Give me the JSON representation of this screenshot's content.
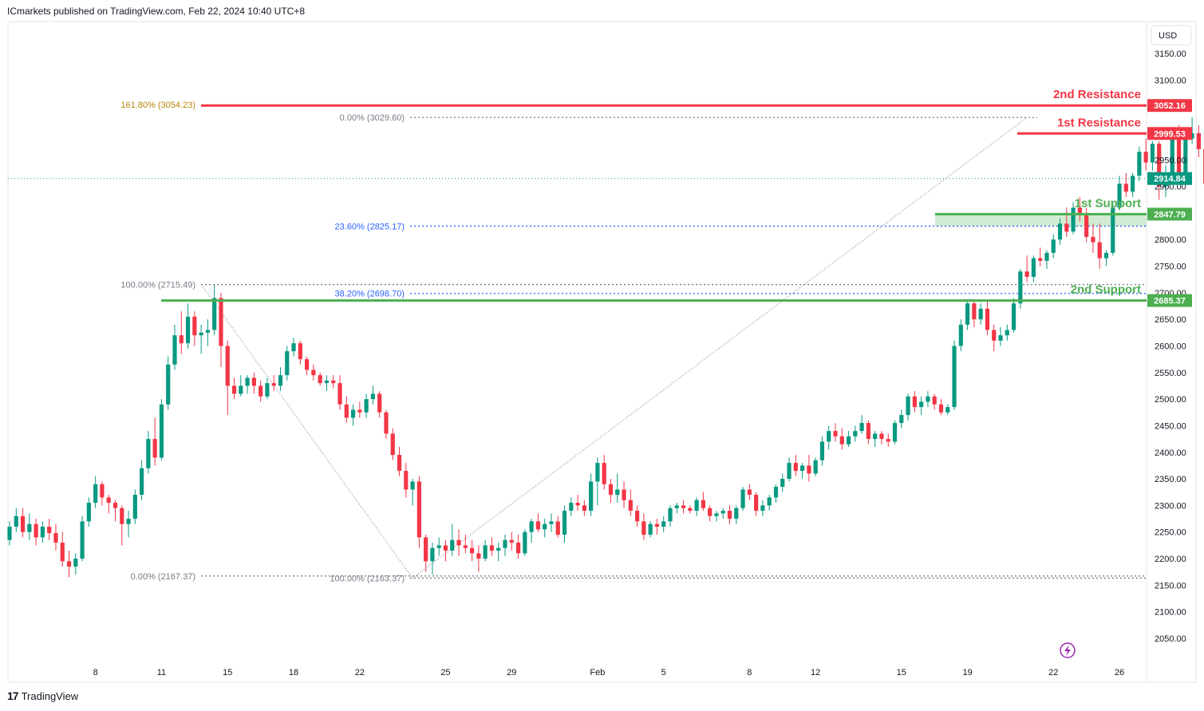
{
  "header": {
    "publisher": "ICmarkets published on TradingView.com, Feb 22, 2024 10:40 UTC+8"
  },
  "footer": {
    "brand": "TradingView",
    "brand_mark": "17"
  },
  "currency_label": "USD",
  "colors": {
    "up": "#089981",
    "down": "#f23645",
    "resistance": "#f23645",
    "support": "#4caf50",
    "fib_blue": "#2962ff",
    "fib_gray": "#787b86",
    "fib_gold": "#b8860b",
    "bg": "#ffffff"
  },
  "icons": {
    "alert": "lightning-icon"
  },
  "chart_data": {
    "type": "candlestick",
    "symbol_currency": "USD",
    "ylim": [
      2000,
      3180
    ],
    "y_ticks": [
      2050,
      2100,
      2150,
      2200,
      2250,
      2300,
      2350,
      2400,
      2450,
      2500,
      2550,
      2600,
      2650,
      2700,
      2750,
      2800,
      2850,
      2900,
      2950,
      3000,
      3050,
      3100,
      3150
    ],
    "y_tick_labels": [
      "2050.00",
      "2100.00",
      "2150.00",
      "2200.00",
      "2250.00",
      "2300.00",
      "2350.00",
      "2400.00",
      "2450.00",
      "2500.00",
      "2550.00",
      "2600.00",
      "2650.00",
      "2700.00",
      "2750.00",
      "2800.00",
      "2850.00",
      "2900.00",
      "2950.00",
      "3000.00",
      "3050.00",
      "3100.00",
      "3150.00"
    ],
    "x_labels": [
      "8",
      "11",
      "15",
      "18",
      "22",
      "25",
      "29",
      "Feb",
      "5",
      "8",
      "12",
      "15",
      "19",
      "22",
      "26"
    ],
    "x_label_candle_index": [
      13,
      23,
      33,
      43,
      53,
      66,
      76,
      89,
      99,
      112,
      122,
      135,
      145,
      158,
      168
    ],
    "current_price": {
      "value": 2914.84,
      "label": "2914.84"
    },
    "levels": [
      {
        "name": "2nd Resistance",
        "value": 3052.16,
        "label": "3052.16",
        "kind": "resistance"
      },
      {
        "name": "1st Resistance",
        "value": 2999.53,
        "label": "2999.53",
        "kind": "resistance"
      },
      {
        "name": "1st Support",
        "value": 2847.79,
        "label": "2847.79",
        "kind": "support",
        "zone_low": 2825.17
      },
      {
        "name": "2nd Support",
        "value": 2685.37,
        "label": "2685.37",
        "kind": "support"
      }
    ],
    "fib_labels": [
      {
        "text": "161.80% (3054.23)",
        "value": 3054.23,
        "color": "gold"
      },
      {
        "text": "0.00% (3029.60)",
        "value": 3029.6,
        "color": "gray"
      },
      {
        "text": "23.60% (2825.17)",
        "value": 2825.17,
        "color": "blue"
      },
      {
        "text": "100.00% (2715.49)",
        "value": 2715.49,
        "color": "gray"
      },
      {
        "text": "38.20% (2698.70)",
        "value": 2698.7,
        "color": "blue"
      },
      {
        "text": "0.00% (2167.37)",
        "value": 2167.37,
        "color": "gray"
      },
      {
        "text": "100.00% (2163.37)",
        "value": 2163.37,
        "color": "gray"
      }
    ],
    "trend_lines": [
      {
        "from_candle": 29,
        "from_price": 2715.49,
        "to_candle": 61,
        "to_price": 2163.37
      },
      {
        "from_candle": 61,
        "from_price": 2163.37,
        "to_candle": 154,
        "to_price": 3029.6
      }
    ],
    "candles": [
      [
        2235,
        2270,
        2225,
        2260
      ],
      [
        2260,
        2295,
        2250,
        2280
      ],
      [
        2280,
        2295,
        2240,
        2250
      ],
      [
        2250,
        2285,
        2235,
        2265
      ],
      [
        2265,
        2275,
        2225,
        2240
      ],
      [
        2240,
        2270,
        2230,
        2260
      ],
      [
        2260,
        2275,
        2235,
        2248
      ],
      [
        2248,
        2265,
        2215,
        2230
      ],
      [
        2230,
        2250,
        2185,
        2195
      ],
      [
        2195,
        2215,
        2165,
        2185
      ],
      [
        2185,
        2210,
        2170,
        2200
      ],
      [
        2200,
        2280,
        2195,
        2270
      ],
      [
        2270,
        2315,
        2260,
        2305
      ],
      [
        2305,
        2355,
        2295,
        2340
      ],
      [
        2340,
        2345,
        2300,
        2315
      ],
      [
        2315,
        2320,
        2285,
        2305
      ],
      [
        2305,
        2310,
        2270,
        2295
      ],
      [
        2295,
        2300,
        2225,
        2265
      ],
      [
        2265,
        2290,
        2240,
        2275
      ],
      [
        2275,
        2330,
        2265,
        2320
      ],
      [
        2320,
        2385,
        2310,
        2370
      ],
      [
        2370,
        2440,
        2360,
        2425
      ],
      [
        2425,
        2465,
        2375,
        2390
      ],
      [
        2390,
        2500,
        2385,
        2490
      ],
      [
        2490,
        2580,
        2480,
        2565
      ],
      [
        2565,
        2640,
        2555,
        2620
      ],
      [
        2620,
        2665,
        2585,
        2605
      ],
      [
        2605,
        2680,
        2595,
        2655
      ],
      [
        2655,
        2665,
        2600,
        2620
      ],
      [
        2620,
        2640,
        2585,
        2625
      ],
      [
        2625,
        2650,
        2600,
        2630
      ],
      [
        2630,
        2715,
        2620,
        2690
      ],
      [
        2690,
        2700,
        2560,
        2600
      ],
      [
        2600,
        2610,
        2470,
        2525
      ],
      [
        2525,
        2540,
        2500,
        2510
      ],
      [
        2510,
        2545,
        2505,
        2525
      ],
      [
        2525,
        2545,
        2510,
        2540
      ],
      [
        2540,
        2550,
        2510,
        2525
      ],
      [
        2525,
        2535,
        2495,
        2505
      ],
      [
        2505,
        2540,
        2500,
        2530
      ],
      [
        2530,
        2545,
        2515,
        2525
      ],
      [
        2525,
        2560,
        2515,
        2545
      ],
      [
        2545,
        2600,
        2535,
        2590
      ],
      [
        2590,
        2615,
        2580,
        2605
      ],
      [
        2605,
        2610,
        2565,
        2575
      ],
      [
        2575,
        2580,
        2545,
        2555
      ],
      [
        2555,
        2565,
        2535,
        2545
      ],
      [
        2545,
        2550,
        2525,
        2530
      ],
      [
        2530,
        2545,
        2515,
        2535
      ],
      [
        2535,
        2545,
        2520,
        2530
      ],
      [
        2530,
        2545,
        2480,
        2490
      ],
      [
        2490,
        2505,
        2455,
        2465
      ],
      [
        2465,
        2490,
        2450,
        2480
      ],
      [
        2480,
        2495,
        2465,
        2475
      ],
      [
        2475,
        2510,
        2465,
        2500
      ],
      [
        2500,
        2525,
        2490,
        2510
      ],
      [
        2510,
        2515,
        2465,
        2475
      ],
      [
        2475,
        2480,
        2425,
        2435
      ],
      [
        2435,
        2445,
        2385,
        2395
      ],
      [
        2395,
        2410,
        2355,
        2365
      ],
      [
        2365,
        2380,
        2315,
        2330
      ],
      [
        2330,
        2350,
        2300,
        2345
      ],
      [
        2345,
        2355,
        2220,
        2240
      ],
      [
        2240,
        2245,
        2175,
        2195
      ],
      [
        2195,
        2230,
        2170,
        2220
      ],
      [
        2220,
        2240,
        2205,
        2225
      ],
      [
        2225,
        2235,
        2195,
        2215
      ],
      [
        2215,
        2265,
        2205,
        2235
      ],
      [
        2235,
        2255,
        2205,
        2225
      ],
      [
        2225,
        2245,
        2210,
        2220
      ],
      [
        2220,
        2235,
        2195,
        2210
      ],
      [
        2210,
        2225,
        2175,
        2200
      ],
      [
        2200,
        2235,
        2195,
        2225
      ],
      [
        2225,
        2240,
        2205,
        2215
      ],
      [
        2215,
        2230,
        2195,
        2220
      ],
      [
        2220,
        2245,
        2205,
        2235
      ],
      [
        2235,
        2250,
        2215,
        2230
      ],
      [
        2230,
        2245,
        2200,
        2210
      ],
      [
        2210,
        2255,
        2205,
        2250
      ],
      [
        2250,
        2275,
        2230,
        2270
      ],
      [
        2270,
        2285,
        2250,
        2255
      ],
      [
        2255,
        2275,
        2240,
        2265
      ],
      [
        2265,
        2285,
        2250,
        2270
      ],
      [
        2270,
        2280,
        2240,
        2245
      ],
      [
        2245,
        2300,
        2230,
        2290
      ],
      [
        2290,
        2315,
        2280,
        2305
      ],
      [
        2305,
        2320,
        2290,
        2300
      ],
      [
        2300,
        2310,
        2280,
        2290
      ],
      [
        2290,
        2360,
        2280,
        2345
      ],
      [
        2345,
        2390,
        2300,
        2380
      ],
      [
        2380,
        2395,
        2330,
        2340
      ],
      [
        2340,
        2350,
        2305,
        2320
      ],
      [
        2320,
        2360,
        2305,
        2330
      ],
      [
        2330,
        2345,
        2295,
        2310
      ],
      [
        2310,
        2330,
        2280,
        2290
      ],
      [
        2290,
        2300,
        2260,
        2270
      ],
      [
        2270,
        2285,
        2235,
        2245
      ],
      [
        2245,
        2270,
        2240,
        2265
      ],
      [
        2265,
        2275,
        2245,
        2260
      ],
      [
        2260,
        2280,
        2250,
        2270
      ],
      [
        2270,
        2300,
        2260,
        2295
      ],
      [
        2295,
        2305,
        2285,
        2300
      ],
      [
        2300,
        2310,
        2285,
        2295
      ],
      [
        2295,
        2300,
        2285,
        2290
      ],
      [
        2290,
        2315,
        2280,
        2310
      ],
      [
        2310,
        2325,
        2290,
        2295
      ],
      [
        2295,
        2300,
        2270,
        2280
      ],
      [
        2280,
        2290,
        2270,
        2285
      ],
      [
        2285,
        2295,
        2275,
        2290
      ],
      [
        2290,
        2300,
        2265,
        2275
      ],
      [
        2275,
        2300,
        2265,
        2295
      ],
      [
        2295,
        2335,
        2290,
        2330
      ],
      [
        2330,
        2340,
        2310,
        2320
      ],
      [
        2320,
        2325,
        2280,
        2290
      ],
      [
        2290,
        2310,
        2280,
        2300
      ],
      [
        2300,
        2320,
        2290,
        2315
      ],
      [
        2315,
        2340,
        2305,
        2335
      ],
      [
        2335,
        2360,
        2325,
        2350
      ],
      [
        2350,
        2390,
        2345,
        2380
      ],
      [
        2380,
        2395,
        2355,
        2365
      ],
      [
        2365,
        2380,
        2350,
        2375
      ],
      [
        2375,
        2395,
        2345,
        2360
      ],
      [
        2360,
        2390,
        2355,
        2385
      ],
      [
        2385,
        2430,
        2375,
        2420
      ],
      [
        2420,
        2450,
        2405,
        2440
      ],
      [
        2440,
        2455,
        2420,
        2430
      ],
      [
        2430,
        2445,
        2405,
        2415
      ],
      [
        2415,
        2440,
        2410,
        2430
      ],
      [
        2430,
        2450,
        2420,
        2440
      ],
      [
        2440,
        2470,
        2435,
        2455
      ],
      [
        2455,
        2460,
        2415,
        2425
      ],
      [
        2425,
        2440,
        2410,
        2435
      ],
      [
        2435,
        2440,
        2415,
        2425
      ],
      [
        2425,
        2435,
        2410,
        2420
      ],
      [
        2420,
        2460,
        2415,
        2455
      ],
      [
        2455,
        2480,
        2445,
        2470
      ],
      [
        2470,
        2510,
        2460,
        2505
      ],
      [
        2505,
        2515,
        2475,
        2485
      ],
      [
        2485,
        2505,
        2470,
        2495
      ],
      [
        2495,
        2515,
        2485,
        2505
      ],
      [
        2505,
        2510,
        2480,
        2490
      ],
      [
        2490,
        2500,
        2470,
        2475
      ],
      [
        2475,
        2490,
        2470,
        2485
      ],
      [
        2485,
        2610,
        2480,
        2600
      ],
      [
        2600,
        2650,
        2590,
        2640
      ],
      [
        2640,
        2685,
        2630,
        2680
      ],
      [
        2680,
        2685,
        2635,
        2650
      ],
      [
        2650,
        2680,
        2640,
        2670
      ],
      [
        2670,
        2685,
        2620,
        2630
      ],
      [
        2630,
        2640,
        2590,
        2610
      ],
      [
        2610,
        2635,
        2600,
        2620
      ],
      [
        2620,
        2640,
        2610,
        2630
      ],
      [
        2630,
        2690,
        2625,
        2680
      ],
      [
        2680,
        2745,
        2670,
        2740
      ],
      [
        2740,
        2770,
        2720,
        2730
      ],
      [
        2730,
        2770,
        2720,
        2765
      ],
      [
        2765,
        2785,
        2750,
        2760
      ],
      [
        2760,
        2780,
        2745,
        2775
      ],
      [
        2775,
        2810,
        2765,
        2800
      ],
      [
        2800,
        2840,
        2790,
        2830
      ],
      [
        2830,
        2860,
        2805,
        2815
      ],
      [
        2815,
        2870,
        2810,
        2860
      ],
      [
        2860,
        2880,
        2835,
        2850
      ],
      [
        2850,
        2860,
        2795,
        2805
      ],
      [
        2805,
        2830,
        2775,
        2795
      ],
      [
        2795,
        2830,
        2745,
        2765
      ],
      [
        2765,
        2780,
        2750,
        2775
      ],
      [
        2775,
        2870,
        2770,
        2860
      ],
      [
        2860,
        2920,
        2855,
        2905
      ],
      [
        2905,
        2925,
        2880,
        2890
      ],
      [
        2890,
        2925,
        2880,
        2920
      ],
      [
        2920,
        2975,
        2910,
        2965
      ],
      [
        2965,
        2990,
        2930,
        2945
      ],
      [
        2945,
        2985,
        2930,
        2980
      ],
      [
        2980,
        2985,
        2875,
        2900
      ],
      [
        2900,
        2940,
        2880,
        2915
      ],
      [
        2915,
        3010,
        2905,
        3005
      ],
      [
        3005,
        3015,
        2910,
        2925
      ],
      [
        2925,
        3010,
        2920,
        2990
      ],
      [
        2990,
        3030,
        2980,
        3000
      ],
      [
        3000,
        3015,
        2955,
        2970
      ],
      [
        2970,
        2985,
        2890,
        2905
      ],
      [
        2905,
        2920,
        2880,
        2895
      ],
      [
        2895,
        2915,
        2870,
        2900
      ],
      [
        2900,
        2925,
        2890,
        2915
      ],
      [
        2915,
        2985,
        2905,
        2910
      ],
      [
        2910,
        2925,
        2900,
        2915
      ]
    ]
  }
}
